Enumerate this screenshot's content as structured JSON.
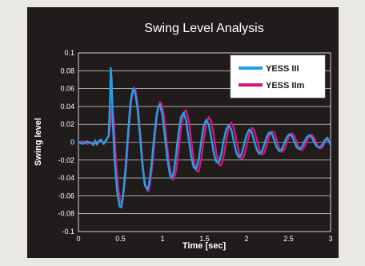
{
  "chart_data": {
    "type": "line",
    "title": "Swing Level Analysis",
    "xlabel": "Time [sec]",
    "ylabel": "Swing level",
    "xlim": [
      0,
      3
    ],
    "ylim": [
      -0.1,
      0.1
    ],
    "x_ticks": [
      "0",
      "0.5",
      "1",
      "1.5",
      "2",
      "2.5",
      "3"
    ],
    "y_ticks": [
      "0.1",
      "0.08",
      "0.06",
      "0.04",
      "0.02",
      "0",
      "-0.02",
      "-0.04",
      "-0.06",
      "-0.08",
      "-0.1"
    ],
    "grid": true,
    "legend_position": "top-right",
    "series": [
      {
        "name": "YESS III",
        "color": "#1fa2e6",
        "points": [
          [
            0.0,
            0.0
          ],
          [
            0.05,
            -0.002
          ],
          [
            0.1,
            0.001
          ],
          [
            0.15,
            -0.001
          ],
          [
            0.18,
            -0.003
          ],
          [
            0.2,
            0.002
          ],
          [
            0.22,
            -0.002
          ],
          [
            0.24,
            0.001
          ],
          [
            0.27,
            0.003
          ],
          [
            0.3,
            -0.002
          ],
          [
            0.33,
            0.002
          ],
          [
            0.36,
            0.008
          ],
          [
            0.375,
            0.045
          ],
          [
            0.385,
            0.083
          ],
          [
            0.395,
            0.07
          ],
          [
            0.41,
            0.02
          ],
          [
            0.43,
            -0.02
          ],
          [
            0.46,
            -0.055
          ],
          [
            0.49,
            -0.072
          ],
          [
            0.51,
            -0.073
          ],
          [
            0.53,
            -0.06
          ],
          [
            0.56,
            -0.03
          ],
          [
            0.59,
            0.01
          ],
          [
            0.62,
            0.045
          ],
          [
            0.65,
            0.06
          ],
          [
            0.67,
            0.058
          ],
          [
            0.7,
            0.04
          ],
          [
            0.73,
            0.01
          ],
          [
            0.76,
            -0.025
          ],
          [
            0.79,
            -0.048
          ],
          [
            0.82,
            -0.053
          ],
          [
            0.84,
            -0.047
          ],
          [
            0.87,
            -0.025
          ],
          [
            0.9,
            0.005
          ],
          [
            0.93,
            0.03
          ],
          [
            0.95,
            0.04
          ],
          [
            0.97,
            0.042
          ],
          [
            1.0,
            0.03
          ],
          [
            1.03,
            0.005
          ],
          [
            1.06,
            -0.02
          ],
          [
            1.09,
            -0.037
          ],
          [
            1.11,
            -0.04
          ],
          [
            1.13,
            -0.035
          ],
          [
            1.16,
            -0.015
          ],
          [
            1.19,
            0.01
          ],
          [
            1.22,
            0.028
          ],
          [
            1.25,
            0.033
          ],
          [
            1.28,
            0.025
          ],
          [
            1.31,
            0.005
          ],
          [
            1.34,
            -0.015
          ],
          [
            1.37,
            -0.028
          ],
          [
            1.4,
            -0.03
          ],
          [
            1.43,
            -0.02
          ],
          [
            1.46,
            0.0
          ],
          [
            1.49,
            0.018
          ],
          [
            1.52,
            0.025
          ],
          [
            1.55,
            0.02
          ],
          [
            1.58,
            0.005
          ],
          [
            1.61,
            -0.012
          ],
          [
            1.64,
            -0.022
          ],
          [
            1.67,
            -0.023
          ],
          [
            1.7,
            -0.013
          ],
          [
            1.73,
            0.003
          ],
          [
            1.76,
            0.015
          ],
          [
            1.79,
            0.019
          ],
          [
            1.82,
            0.014
          ],
          [
            1.85,
            0.0
          ],
          [
            1.88,
            -0.012
          ],
          [
            1.91,
            -0.017
          ],
          [
            1.94,
            -0.014
          ],
          [
            1.97,
            -0.003
          ],
          [
            2.0,
            0.008
          ],
          [
            2.03,
            0.014
          ],
          [
            2.06,
            0.012
          ],
          [
            2.09,
            0.002
          ],
          [
            2.12,
            -0.008
          ],
          [
            2.15,
            -0.013
          ],
          [
            2.18,
            -0.011
          ],
          [
            2.21,
            -0.003
          ],
          [
            2.24,
            0.006
          ],
          [
            2.27,
            0.011
          ],
          [
            2.3,
            0.01
          ],
          [
            2.33,
            0.002
          ],
          [
            2.36,
            -0.006
          ],
          [
            2.39,
            -0.01
          ],
          [
            2.42,
            -0.008
          ],
          [
            2.45,
            -0.001
          ],
          [
            2.48,
            0.006
          ],
          [
            2.51,
            0.009
          ],
          [
            2.54,
            0.007
          ],
          [
            2.57,
            0.0
          ],
          [
            2.6,
            -0.006
          ],
          [
            2.63,
            -0.008
          ],
          [
            2.66,
            -0.005
          ],
          [
            2.69,
            0.001
          ],
          [
            2.72,
            0.006
          ],
          [
            2.75,
            0.008
          ],
          [
            2.78,
            0.005
          ],
          [
            2.81,
            -0.001
          ],
          [
            2.84,
            -0.005
          ],
          [
            2.87,
            -0.006
          ],
          [
            2.9,
            -0.003
          ],
          [
            2.93,
            0.002
          ],
          [
            2.96,
            0.005
          ],
          [
            3.0,
            -0.003
          ]
        ]
      },
      {
        "name": "YESS IIm",
        "color": "#d6157a",
        "points": [
          [
            0.0,
            0.0
          ],
          [
            0.05,
            0.001
          ],
          [
            0.1,
            -0.002
          ],
          [
            0.15,
            0.0
          ],
          [
            0.18,
            -0.001
          ],
          [
            0.2,
            0.001
          ],
          [
            0.22,
            -0.003
          ],
          [
            0.24,
            0.0
          ],
          [
            0.27,
            0.002
          ],
          [
            0.3,
            -0.001
          ],
          [
            0.33,
            0.003
          ],
          [
            0.36,
            0.006
          ],
          [
            0.38,
            0.02
          ],
          [
            0.4,
            0.04
          ],
          [
            0.42,
            0.025
          ],
          [
            0.44,
            -0.01
          ],
          [
            0.47,
            -0.05
          ],
          [
            0.5,
            -0.068
          ],
          [
            0.52,
            -0.068
          ],
          [
            0.54,
            -0.055
          ],
          [
            0.57,
            -0.025
          ],
          [
            0.6,
            0.015
          ],
          [
            0.63,
            0.048
          ],
          [
            0.66,
            0.061
          ],
          [
            0.68,
            0.058
          ],
          [
            0.71,
            0.038
          ],
          [
            0.74,
            0.005
          ],
          [
            0.77,
            -0.03
          ],
          [
            0.8,
            -0.05
          ],
          [
            0.83,
            -0.055
          ],
          [
            0.85,
            -0.048
          ],
          [
            0.88,
            -0.025
          ],
          [
            0.91,
            0.008
          ],
          [
            0.94,
            0.035
          ],
          [
            0.97,
            0.045
          ],
          [
            0.99,
            0.043
          ],
          [
            1.02,
            0.028
          ],
          [
            1.05,
            0.0
          ],
          [
            1.08,
            -0.025
          ],
          [
            1.11,
            -0.04
          ],
          [
            1.13,
            -0.042
          ],
          [
            1.16,
            -0.033
          ],
          [
            1.19,
            -0.01
          ],
          [
            1.22,
            0.015
          ],
          [
            1.25,
            0.032
          ],
          [
            1.28,
            0.036
          ],
          [
            1.31,
            0.026
          ],
          [
            1.34,
            0.004
          ],
          [
            1.37,
            -0.018
          ],
          [
            1.4,
            -0.032
          ],
          [
            1.43,
            -0.033
          ],
          [
            1.46,
            -0.02
          ],
          [
            1.49,
            0.002
          ],
          [
            1.52,
            0.02
          ],
          [
            1.55,
            0.028
          ],
          [
            1.58,
            0.024
          ],
          [
            1.61,
            0.008
          ],
          [
            1.64,
            -0.012
          ],
          [
            1.67,
            -0.025
          ],
          [
            1.7,
            -0.026
          ],
          [
            1.73,
            -0.015
          ],
          [
            1.76,
            0.003
          ],
          [
            1.79,
            0.017
          ],
          [
            1.82,
            0.022
          ],
          [
            1.85,
            0.016
          ],
          [
            1.88,
            0.002
          ],
          [
            1.91,
            -0.012
          ],
          [
            1.94,
            -0.019
          ],
          [
            1.97,
            -0.016
          ],
          [
            2.0,
            -0.004
          ],
          [
            2.03,
            0.008
          ],
          [
            2.06,
            0.016
          ],
          [
            2.09,
            0.014
          ],
          [
            2.12,
            0.004
          ],
          [
            2.15,
            -0.008
          ],
          [
            2.18,
            -0.014
          ],
          [
            2.21,
            -0.012
          ],
          [
            2.24,
            -0.003
          ],
          [
            2.27,
            0.007
          ],
          [
            2.3,
            0.012
          ],
          [
            2.33,
            0.011
          ],
          [
            2.36,
            0.002
          ],
          [
            2.39,
            -0.007
          ],
          [
            2.42,
            -0.011
          ],
          [
            2.45,
            -0.008
          ],
          [
            2.48,
            0.0
          ],
          [
            2.51,
            0.007
          ],
          [
            2.54,
            0.01
          ],
          [
            2.57,
            0.007
          ],
          [
            2.6,
            -0.001
          ],
          [
            2.63,
            -0.007
          ],
          [
            2.66,
            -0.009
          ],
          [
            2.69,
            -0.005
          ],
          [
            2.72,
            0.002
          ],
          [
            2.75,
            0.007
          ],
          [
            2.78,
            0.008
          ],
          [
            2.81,
            0.004
          ],
          [
            2.84,
            -0.003
          ],
          [
            2.87,
            -0.007
          ],
          [
            2.9,
            -0.006
          ],
          [
            2.93,
            -0.001
          ],
          [
            2.96,
            0.004
          ],
          [
            3.0,
            0.003
          ]
        ]
      }
    ]
  }
}
